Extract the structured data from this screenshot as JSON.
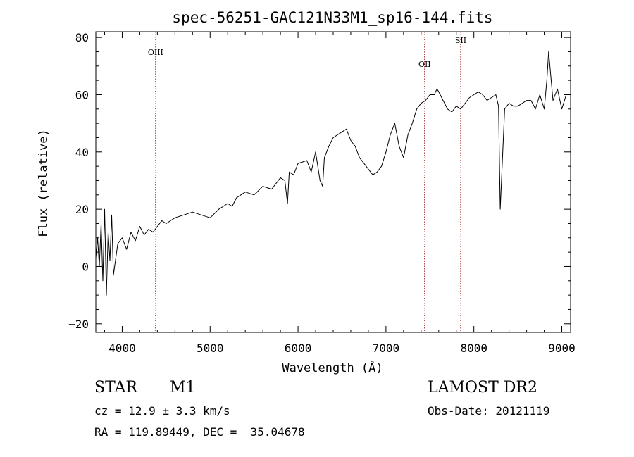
{
  "chart_data": {
    "type": "line",
    "title": "spec-56251-GAC121N33M1_sp16-144.fits",
    "xlabel": "Wavelength (Å)",
    "ylabel": "Flux (relative)",
    "xlim": [
      3700,
      9100
    ],
    "ylim": [
      -23,
      82
    ],
    "xticks": [
      4000,
      5000,
      6000,
      7000,
      8000,
      9000
    ],
    "yticks": [
      -20,
      0,
      20,
      40,
      60,
      80
    ],
    "grid": false,
    "line_color": "#000000",
    "marker_color": "#8b0000",
    "lines": [
      {
        "label": "OIII",
        "x": 4380
      },
      {
        "label": "OII",
        "x": 7440
      },
      {
        "label": "SII",
        "x": 7850
      }
    ],
    "series": [
      {
        "x": [
          3700,
          3720,
          3740,
          3760,
          3780,
          3800,
          3820,
          3840,
          3860,
          3880,
          3900,
          3950,
          4000,
          4050,
          4100,
          4150,
          4200,
          4250,
          4300,
          4350,
          4400,
          4450,
          4500,
          4600,
          4700,
          4800,
          4900,
          5000,
          5100,
          5200,
          5250,
          5300,
          5400,
          5500,
          5600,
          5700,
          5800,
          5850,
          5880,
          5900,
          5950,
          6000,
          6100,
          6150,
          6200,
          6250,
          6280,
          6300,
          6350,
          6400,
          6450,
          6500,
          6550,
          6600,
          6650,
          6700,
          6750,
          6800,
          6850,
          6900,
          6950,
          7000,
          7050,
          7100,
          7150,
          7200,
          7250,
          7300,
          7350,
          7400,
          7450,
          7500,
          7550,
          7580,
          7600,
          7650,
          7700,
          7750,
          7800,
          7850,
          7900,
          7950,
          8000,
          8050,
          8100,
          8150,
          8200,
          8250,
          8280,
          8300,
          8350,
          8400,
          8450,
          8500,
          8550,
          8600,
          8650,
          8700,
          8750,
          8800,
          8830,
          8850,
          8900,
          8950,
          9000,
          9050
        ],
        "y": [
          3,
          10,
          0,
          15,
          -5,
          20,
          -10,
          12,
          2,
          18,
          -3,
          8,
          10,
          6,
          12,
          9,
          14,
          11,
          13,
          12,
          14,
          16,
          15,
          17,
          18,
          19,
          18,
          17,
          20,
          22,
          21,
          24,
          26,
          25,
          28,
          27,
          31,
          30,
          22,
          33,
          32,
          36,
          37,
          33,
          40,
          30,
          28,
          38,
          42,
          45,
          46,
          47,
          48,
          44,
          42,
          38,
          36,
          34,
          32,
          33,
          35,
          40,
          46,
          50,
          42,
          38,
          46,
          50,
          55,
          57,
          58,
          60,
          60,
          62,
          61,
          58,
          55,
          54,
          56,
          55,
          57,
          59,
          60,
          61,
          60,
          58,
          59,
          60,
          56,
          20,
          55,
          57,
          56,
          56,
          57,
          58,
          58,
          55,
          60,
          55,
          65,
          75,
          58,
          62,
          55,
          60
        ]
      }
    ]
  },
  "info": {
    "object_type": "STAR",
    "subclass": "M1",
    "survey": "LAMOST DR2",
    "cz": "cz = 12.9 ± 3.3 km/s",
    "obs_date": "Obs-Date: 20121119",
    "coords": "RA = 119.89449, DEC =  35.04678"
  }
}
